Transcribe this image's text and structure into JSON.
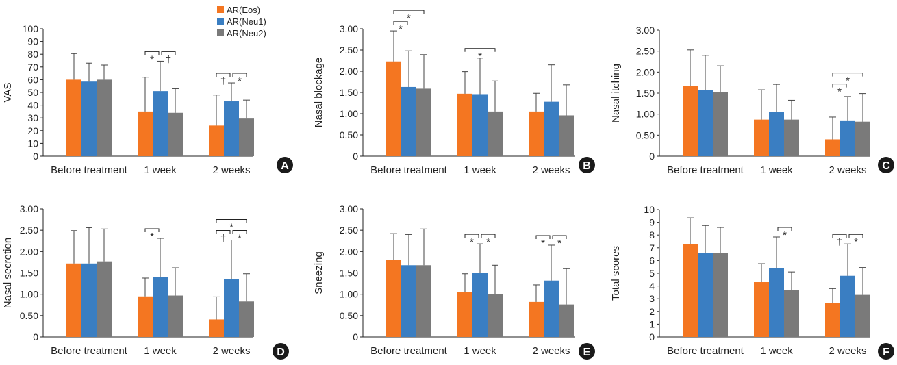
{
  "colors": {
    "eos": "#f47621",
    "neu1": "#3a7ec2",
    "neu2": "#7a7a7a",
    "axis": "#222222",
    "error": "#444444",
    "badge": "#1a1a1a"
  },
  "legend": [
    {
      "label": "AR(Eos)",
      "color": "#f47621"
    },
    {
      "label": "AR(Neu1)",
      "color": "#3a7ec2"
    },
    {
      "label": "AR(Neu2)",
      "color": "#7a7a7a"
    }
  ],
  "chart_data": [
    {
      "panel": "A",
      "type": "bar",
      "ylabel": "VAS",
      "categories": [
        "Before treatment",
        "1 week",
        "2 weeks"
      ],
      "ylim": [
        0,
        100
      ],
      "yticks": [
        "0",
        "10",
        "20",
        "30",
        "40",
        "50",
        "60",
        "70",
        "80",
        "90",
        "100"
      ],
      "series": [
        {
          "name": "AR(Eos)",
          "values": [
            60,
            35,
            24
          ],
          "errors": [
            20.5,
            27,
            24
          ]
        },
        {
          "name": "AR(Neu1)",
          "values": [
            58.5,
            51,
            43
          ],
          "errors": [
            14.5,
            23.5,
            14.5
          ]
        },
        {
          "name": "AR(Neu2)",
          "values": [
            60,
            34,
            29.5
          ],
          "errors": [
            11.5,
            19,
            14.5
          ]
        }
      ],
      "significance": [
        {
          "cat": 1,
          "from": 0,
          "to": 1,
          "level": 1,
          "mark": "*"
        },
        {
          "cat": 1,
          "from": 1,
          "to": 2,
          "level": 1,
          "mark": "†"
        },
        {
          "cat": 2,
          "from": 0,
          "to": 1,
          "level": 1,
          "mark": "†"
        },
        {
          "cat": 2,
          "from": 1,
          "to": 2,
          "level": 1,
          "mark": "*"
        }
      ]
    },
    {
      "panel": "B",
      "type": "bar",
      "ylabel": "Nasal blockage",
      "categories": [
        "Before treatment",
        "1 week",
        "2 weeks"
      ],
      "ylim": [
        0,
        3
      ],
      "yticks": [
        "0",
        "0.50",
        "1.00",
        "1.50",
        "2.00",
        "2.50",
        "3.00"
      ],
      "series": [
        {
          "name": "AR(Eos)",
          "values": [
            2.23,
            1.47,
            1.05
          ],
          "errors": [
            0.72,
            0.52,
            0.43
          ]
        },
        {
          "name": "AR(Neu1)",
          "values": [
            1.63,
            1.46,
            1.28
          ],
          "errors": [
            0.85,
            0.85,
            0.87
          ]
        },
        {
          "name": "AR(Neu2)",
          "values": [
            1.59,
            1.05,
            0.96
          ],
          "errors": [
            0.8,
            0.72,
            0.72
          ]
        }
      ],
      "significance": [
        {
          "cat": 0,
          "from": 0,
          "to": 1,
          "level": 1,
          "mark": "*"
        },
        {
          "cat": 0,
          "from": 0,
          "to": 2,
          "level": 2,
          "mark": "*"
        },
        {
          "cat": 1,
          "from": 0,
          "to": 2,
          "level": 1,
          "mark": "*"
        }
      ]
    },
    {
      "panel": "C",
      "type": "bar",
      "ylabel": "Nasal itching",
      "categories": [
        "Before treatment",
        "1 week",
        "2 weeks"
      ],
      "ylim": [
        0,
        3
      ],
      "yticks": [
        "0",
        "0.50",
        "1.00",
        "1.50",
        "2.00",
        "2.50",
        "3.00"
      ],
      "series": [
        {
          "name": "AR(Eos)",
          "values": [
            1.67,
            0.87,
            0.4
          ],
          "errors": [
            0.86,
            0.71,
            0.53
          ]
        },
        {
          "name": "AR(Neu1)",
          "values": [
            1.58,
            1.05,
            0.85
          ],
          "errors": [
            0.82,
            0.66,
            0.57
          ]
        },
        {
          "name": "AR(Neu2)",
          "values": [
            1.53,
            0.87,
            0.82
          ],
          "errors": [
            0.62,
            0.46,
            0.67
          ]
        }
      ],
      "significance": [
        {
          "cat": 2,
          "from": 0,
          "to": 1,
          "level": 1,
          "mark": "*"
        },
        {
          "cat": 2,
          "from": 0,
          "to": 2,
          "level": 2,
          "mark": "*"
        }
      ]
    },
    {
      "panel": "D",
      "type": "bar",
      "ylabel": "Nasal secretion",
      "categories": [
        "Before treatment",
        "1 week",
        "2 weeks"
      ],
      "ylim": [
        0,
        3
      ],
      "yticks": [
        "0",
        "0.50",
        "1.00",
        "1.50",
        "2.00",
        "2.50",
        "3.00"
      ],
      "series": [
        {
          "name": "AR(Eos)",
          "values": [
            1.72,
            0.95,
            0.41
          ],
          "errors": [
            0.77,
            0.43,
            0.53
          ]
        },
        {
          "name": "AR(Neu1)",
          "values": [
            1.72,
            1.41,
            1.36
          ],
          "errors": [
            0.84,
            0.9,
            0.91
          ]
        },
        {
          "name": "AR(Neu2)",
          "values": [
            1.77,
            0.97,
            0.83
          ],
          "errors": [
            0.76,
            0.65,
            0.65
          ]
        }
      ],
      "significance": [
        {
          "cat": 1,
          "from": 0,
          "to": 1,
          "level": 1,
          "mark": "*"
        },
        {
          "cat": 2,
          "from": 0,
          "to": 1,
          "level": 1,
          "mark": "†"
        },
        {
          "cat": 2,
          "from": 1,
          "to": 2,
          "level": 1,
          "mark": "*"
        },
        {
          "cat": 2,
          "from": 0,
          "to": 2,
          "level": 2,
          "mark": "*"
        }
      ]
    },
    {
      "panel": "E",
      "type": "bar",
      "ylabel": "Sneezing",
      "categories": [
        "Before treatment",
        "1 week",
        "2 weeks"
      ],
      "ylim": [
        0,
        3
      ],
      "yticks": [
        "0",
        "0.50",
        "1.00",
        "1.50",
        "2.00",
        "2.50",
        "3.00"
      ],
      "series": [
        {
          "name": "AR(Eos)",
          "values": [
            1.8,
            1.05,
            0.82
          ],
          "errors": [
            0.62,
            0.43,
            0.4
          ]
        },
        {
          "name": "AR(Neu1)",
          "values": [
            1.68,
            1.5,
            1.32
          ],
          "errors": [
            0.72,
            0.68,
            0.83
          ]
        },
        {
          "name": "AR(Neu2)",
          "values": [
            1.68,
            1.0,
            0.76
          ],
          "errors": [
            0.85,
            0.68,
            0.84
          ]
        }
      ],
      "significance": [
        {
          "cat": 1,
          "from": 0,
          "to": 1,
          "level": 1,
          "mark": "*"
        },
        {
          "cat": 1,
          "from": 1,
          "to": 2,
          "level": 1,
          "mark": "*"
        },
        {
          "cat": 2,
          "from": 0,
          "to": 1,
          "level": 1,
          "mark": "*"
        },
        {
          "cat": 2,
          "from": 1,
          "to": 2,
          "level": 1,
          "mark": "*"
        }
      ]
    },
    {
      "panel": "F",
      "type": "bar",
      "ylabel": "Total scores",
      "categories": [
        "Before treatment",
        "1 week",
        "2 weeks"
      ],
      "ylim": [
        0,
        10
      ],
      "yticks": [
        "0",
        "1",
        "2",
        "3",
        "4",
        "5",
        "6",
        "7",
        "8",
        "9",
        "10"
      ],
      "series": [
        {
          "name": "AR(Eos)",
          "values": [
            7.3,
            4.3,
            2.65
          ],
          "errors": [
            2.05,
            1.45,
            1.15
          ]
        },
        {
          "name": "AR(Neu1)",
          "values": [
            6.6,
            5.4,
            4.8
          ],
          "errors": [
            2.15,
            2.45,
            2.5
          ]
        },
        {
          "name": "AR(Neu2)",
          "values": [
            6.6,
            3.7,
            3.3
          ],
          "errors": [
            2.0,
            1.4,
            2.15
          ]
        }
      ],
      "significance": [
        {
          "cat": 1,
          "from": 1,
          "to": 2,
          "level": 1,
          "mark": "*"
        },
        {
          "cat": 2,
          "from": 0,
          "to": 1,
          "level": 1,
          "mark": "†"
        },
        {
          "cat": 2,
          "from": 1,
          "to": 2,
          "level": 1,
          "mark": "*"
        }
      ]
    }
  ]
}
